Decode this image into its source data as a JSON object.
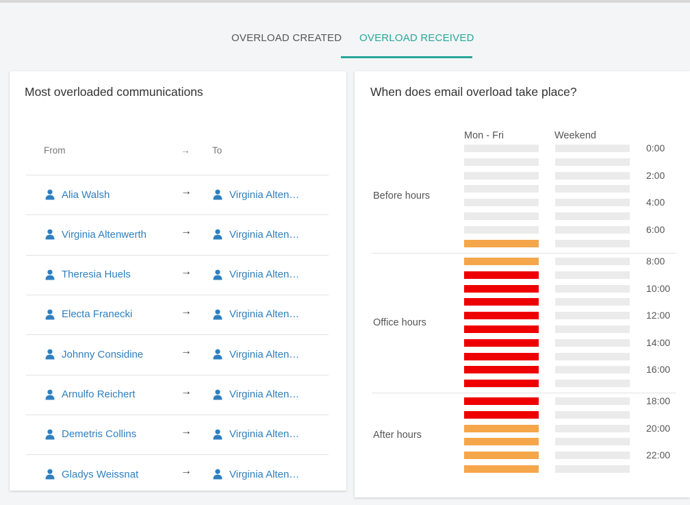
{
  "tabs": {
    "created": "OVERLOAD CREATED",
    "received": "OVERLOAD RECEIVED",
    "accent": "#26a69a"
  },
  "communications": {
    "title": "Most overloaded communications",
    "headers": {
      "from": "From",
      "arrow": "→",
      "to": "To"
    },
    "rows": [
      {
        "from": "Alia Walsh",
        "to": "Virginia Alten…"
      },
      {
        "from": "Virginia Altenwerth",
        "to": "Virginia Alten…"
      },
      {
        "from": "Theresia Huels",
        "to": "Virginia Alten…"
      },
      {
        "from": "Electa Franecki",
        "to": "Virginia Alten…"
      },
      {
        "from": "Johnny Considine",
        "to": "Virginia Alten…"
      },
      {
        "from": "Arnulfo Reichert",
        "to": "Virginia Alten…"
      },
      {
        "from": "Demetris Collins",
        "to": "Virginia Alten…"
      },
      {
        "from": "Gladys Weissnat",
        "to": "Virginia Alten…"
      }
    ],
    "link_color": "#2e7fbf"
  },
  "overload": {
    "title": "When does email overload take place?",
    "columns": {
      "weekday": "Mon - Fri",
      "weekend": "Weekend"
    },
    "periods": [
      "Before hours",
      "Office hours",
      "After hours"
    ],
    "time_labels": [
      "0:00",
      "2:00",
      "4:00",
      "6:00",
      "8:00",
      "10:00",
      "12:00",
      "14:00",
      "16:00",
      "18:00",
      "20:00",
      "22:00"
    ],
    "level_colors": {
      "none": "#ebebeb",
      "medium": "#f5a64a",
      "high": "#ee0000"
    },
    "weekday_levels": [
      "none",
      "none",
      "none",
      "none",
      "none",
      "none",
      "none",
      "medium",
      "medium",
      "high",
      "high",
      "high",
      "high",
      "high",
      "high",
      "high",
      "high",
      "high",
      "high",
      "high",
      "medium",
      "medium",
      "medium",
      "medium"
    ],
    "weekend_levels": [
      "none",
      "none",
      "none",
      "none",
      "none",
      "none",
      "none",
      "none",
      "none",
      "none",
      "none",
      "none",
      "none",
      "none",
      "none",
      "none",
      "none",
      "none",
      "none",
      "none",
      "none",
      "none",
      "none",
      "none"
    ]
  }
}
